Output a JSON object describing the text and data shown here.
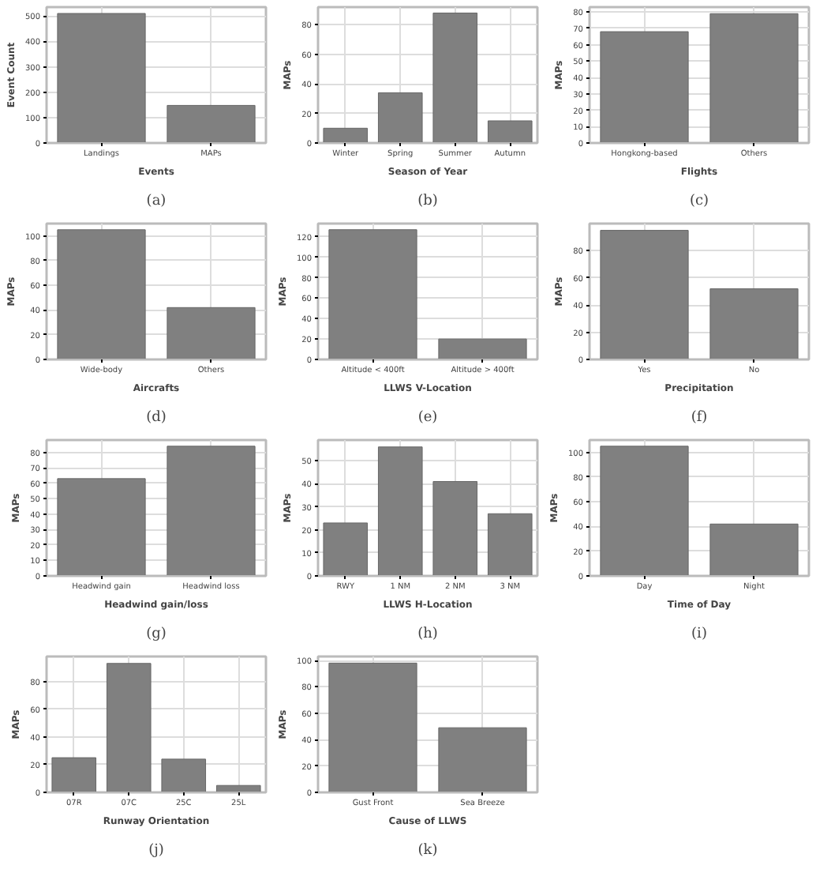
{
  "chart_data": [
    {
      "type": "bar",
      "categories": [
        "Landings",
        "MAPs"
      ],
      "values": [
        510,
        148
      ],
      "color": "#808080",
      "xlabel": "Events",
      "ylabel": "Event Count",
      "ylim": [
        0,
        535
      ],
      "yticks": [
        0,
        100,
        200,
        300,
        400,
        500
      ],
      "grid": true,
      "annotations": [
        "(a)"
      ]
    },
    {
      "type": "bar",
      "categories": [
        "Winter",
        "Spring",
        "Summer",
        "Autumn"
      ],
      "values": [
        10,
        34,
        88,
        15
      ],
      "color": "#808080",
      "xlabel": "Season of Year",
      "ylabel": "MAPs",
      "ylim": [
        0,
        92
      ],
      "yticks": [
        0,
        20,
        40,
        60,
        80
      ],
      "grid": true,
      "annotations": [
        "(b)"
      ]
    },
    {
      "type": "bar",
      "categories": [
        "Hongkong-based",
        "Others"
      ],
      "values": [
        68,
        79
      ],
      "color": "#808080",
      "xlabel": "Flights",
      "ylabel": "MAPs",
      "ylim": [
        0,
        83
      ],
      "yticks": [
        0,
        10,
        20,
        30,
        40,
        50,
        60,
        70,
        80
      ],
      "grid": true,
      "annotations": [
        "(c)"
      ]
    },
    {
      "type": "bar",
      "categories": [
        "Wide-body",
        "Others"
      ],
      "values": [
        105,
        42
      ],
      "color": "#808080",
      "xlabel": "Aircrafts",
      "ylabel": "MAPs",
      "ylim": [
        0,
        110
      ],
      "yticks": [
        0,
        20,
        40,
        60,
        80,
        100
      ],
      "grid": true,
      "annotations": [
        "(d)"
      ]
    },
    {
      "type": "bar",
      "categories": [
        "Altitude < 400ft",
        "Altitude > 400ft"
      ],
      "values": [
        127,
        20
      ],
      "color": "#808080",
      "xlabel": "LLWS V-Location",
      "ylabel": "MAPs",
      "ylim": [
        0,
        133
      ],
      "yticks": [
        0,
        20,
        40,
        60,
        80,
        100,
        120
      ],
      "grid": true,
      "annotations": [
        "(e)"
      ]
    },
    {
      "type": "bar",
      "categories": [
        "Yes",
        "No"
      ],
      "values": [
        95,
        52
      ],
      "color": "#808080",
      "xlabel": "Precipitation",
      "ylabel": "MAPs",
      "ylim": [
        0,
        100
      ],
      "yticks": [
        0,
        20,
        40,
        60,
        80
      ],
      "grid": true,
      "annotations": [
        "(f)"
      ]
    },
    {
      "type": "bar",
      "categories": [
        "Headwind gain",
        "Headwind loss"
      ],
      "values": [
        63,
        84
      ],
      "color": "#808080",
      "xlabel": "Headwind gain/loss",
      "ylabel": "MAPs",
      "ylim": [
        0,
        88
      ],
      "yticks": [
        0,
        10,
        20,
        30,
        40,
        50,
        60,
        70,
        80
      ],
      "grid": true,
      "annotations": [
        "(g)"
      ]
    },
    {
      "type": "bar",
      "categories": [
        "RWY",
        "1 NM",
        "2 NM",
        "3 NM"
      ],
      "values": [
        23,
        56,
        41,
        27
      ],
      "color": "#808080",
      "xlabel": "LLWS H-Location",
      "ylabel": "MAPs",
      "ylim": [
        0,
        59
      ],
      "yticks": [
        0,
        10,
        20,
        30,
        40,
        50
      ],
      "grid": true,
      "annotations": [
        "(h)"
      ]
    },
    {
      "type": "bar",
      "categories": [
        "Day",
        "Night"
      ],
      "values": [
        105,
        42
      ],
      "color": "#808080",
      "xlabel": "Time of Day",
      "ylabel": "MAPs",
      "ylim": [
        0,
        110
      ],
      "yticks": [
        0,
        20,
        40,
        60,
        80,
        100
      ],
      "grid": true,
      "annotations": [
        "(i)"
      ]
    },
    {
      "type": "bar",
      "categories": [
        "07R",
        "07C",
        "25C",
        "25L"
      ],
      "values": [
        25,
        93,
        24,
        5
      ],
      "color": "#808080",
      "xlabel": "Runway Orientation",
      "ylabel": "MAPs",
      "ylim": [
        0,
        98
      ],
      "yticks": [
        0,
        20,
        40,
        60,
        80
      ],
      "grid": true,
      "annotations": [
        "(j)"
      ]
    },
    {
      "type": "bar",
      "categories": [
        "Gust Front",
        "Sea Breeze"
      ],
      "values": [
        98,
        49
      ],
      "color": "#808080",
      "xlabel": "Cause of LLWS",
      "ylabel": "MAPs",
      "ylim": [
        0,
        103
      ],
      "yticks": [
        0,
        20,
        40,
        60,
        80,
        100
      ],
      "grid": true,
      "annotations": [
        "(k)"
      ]
    }
  ]
}
